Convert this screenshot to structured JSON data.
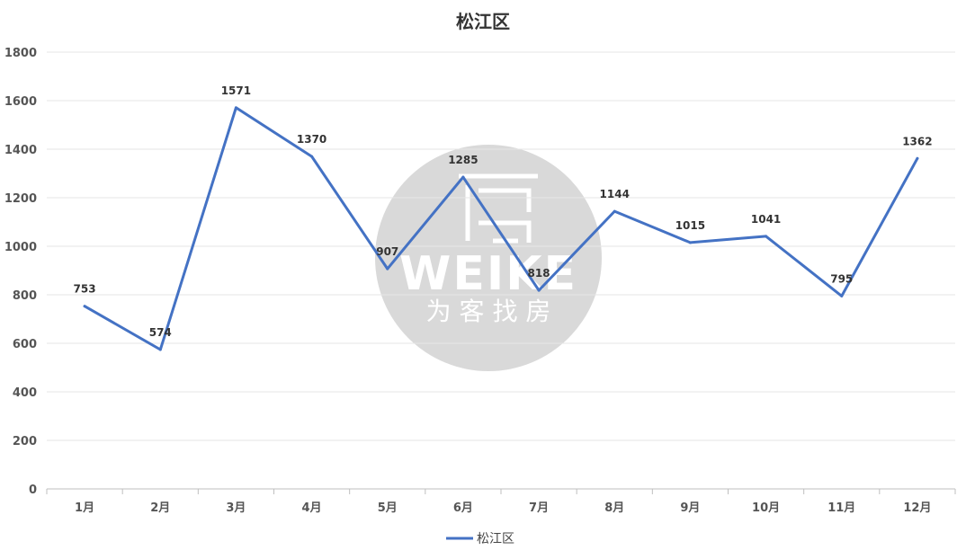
{
  "chart_data": {
    "type": "line",
    "title": "松江区",
    "categories": [
      "1月",
      "2月",
      "3月",
      "4月",
      "5月",
      "6月",
      "7月",
      "8月",
      "9月",
      "10月",
      "11月",
      "12月"
    ],
    "series": [
      {
        "name": "松江区",
        "values": [
          753,
          574,
          1571,
          1370,
          907,
          1285,
          818,
          1144,
          1015,
          1041,
          795,
          1362
        ],
        "color": "#4472C4"
      }
    ],
    "ylim": [
      0,
      1800
    ],
    "yticks": [
      "0",
      "200",
      "400",
      "600",
      "800",
      "1000",
      "1200",
      "1400",
      "1600",
      "1800"
    ],
    "grid": true,
    "legend": "bottom"
  },
  "watermark": {
    "brand": "WEIKE",
    "slogan": "为 客 找 房",
    "icon": "house-logo-icon",
    "color": "#d9d9d9"
  }
}
